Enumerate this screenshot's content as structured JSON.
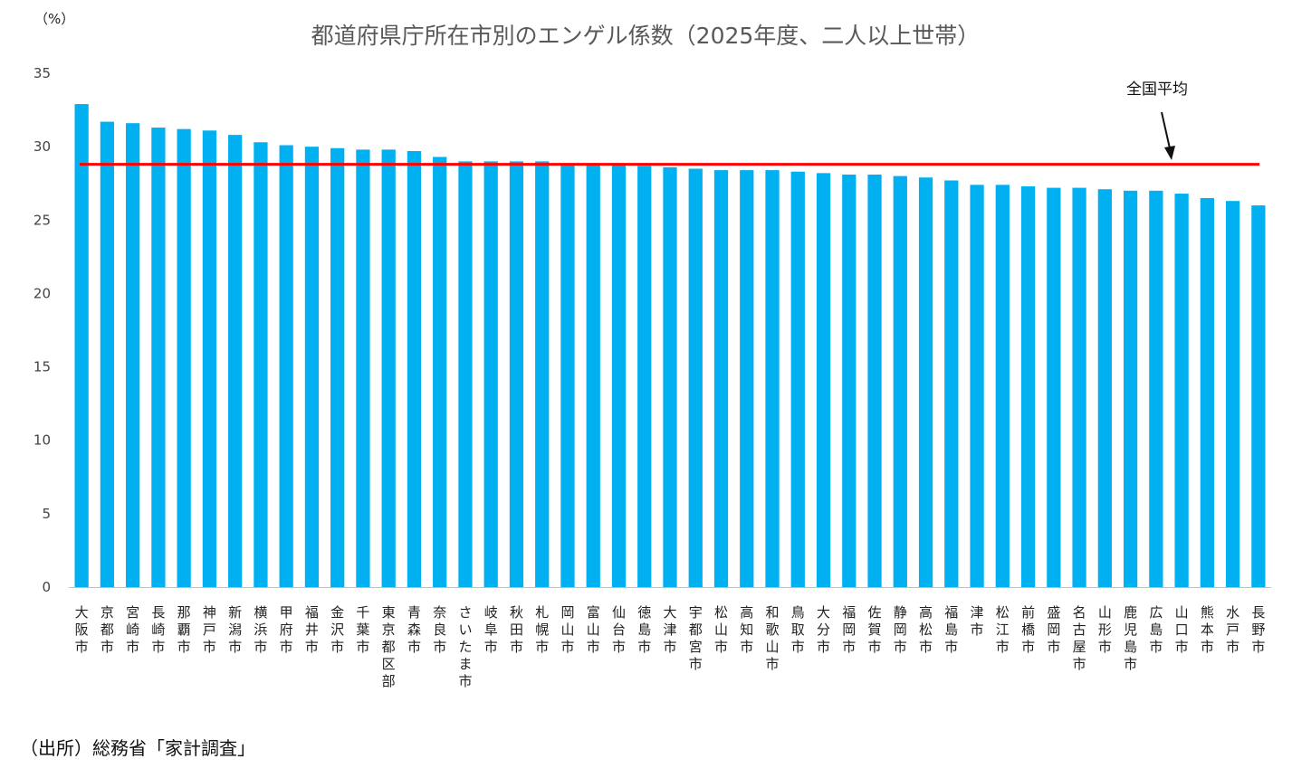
{
  "chart_data": {
    "type": "bar",
    "title": "都道府県庁所在市別のエンゲル係数（2025年度、二人以上世帯）",
    "unit_label": "（%）",
    "ylim": [
      0,
      35
    ],
    "yticks": [
      0,
      5,
      10,
      15,
      20,
      25,
      30,
      35
    ],
    "grid": false,
    "bar_color": "#00B0F0",
    "reference_line": {
      "label": "全国平均",
      "value": 28.8,
      "color": "#FF0000"
    },
    "source_note": "（出所）総務省「家計調査」",
    "categories": [
      "大阪市",
      "京都市",
      "宮崎市",
      "長崎市",
      "那覇市",
      "神戸市",
      "新潟市",
      "横浜市",
      "甲府市",
      "福井市",
      "金沢市",
      "千葉市",
      "東京都区部",
      "青森市",
      "奈良市",
      "さいたま市",
      "岐阜市",
      "秋田市",
      "札幌市",
      "岡山市",
      "富山市",
      "仙台市",
      "徳島市",
      "大津市",
      "宇都宮市",
      "松山市",
      "高知市",
      "和歌山市",
      "鳥取市",
      "大分市",
      "福岡市",
      "佐賀市",
      "静岡市",
      "高松市",
      "福島市",
      "津市",
      "松江市",
      "前橋市",
      "盛岡市",
      "名古屋市",
      "山形市",
      "鹿児島市",
      "広島市",
      "山口市",
      "熊本市",
      "水戸市",
      "長野市"
    ],
    "values": [
      32.9,
      31.7,
      31.6,
      31.3,
      31.2,
      31.1,
      30.8,
      30.3,
      30.1,
      30.0,
      29.9,
      29.8,
      29.8,
      29.7,
      29.3,
      29.0,
      29.0,
      29.0,
      29.0,
      28.8,
      28.8,
      28.8,
      28.7,
      28.6,
      28.5,
      28.4,
      28.4,
      28.4,
      28.3,
      28.2,
      28.1,
      28.1,
      28.0,
      27.9,
      27.7,
      27.4,
      27.4,
      27.3,
      27.2,
      27.2,
      27.1,
      27.0,
      27.0,
      26.8,
      26.5,
      26.3,
      26.0
    ]
  }
}
